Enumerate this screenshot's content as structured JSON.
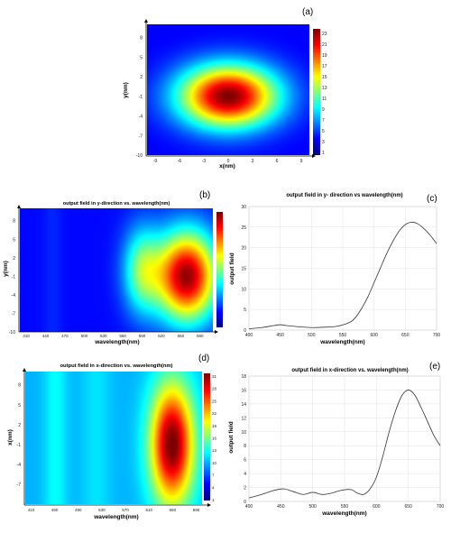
{
  "panels": {
    "a": "(a)",
    "b": "(b)",
    "c": "(c)",
    "d": "(d)",
    "e": "(e)"
  },
  "chart_data": [
    {
      "id": "a",
      "type": "heatmap",
      "title": "",
      "xlabel": "x(nm)",
      "ylabel": "y(nm)",
      "xlim": [
        -10,
        10
      ],
      "ylim": [
        -10,
        10
      ],
      "x_ticks": [
        "-9",
        "-6",
        "-3",
        "0",
        "3",
        "6",
        "9"
      ],
      "x_tick_values": [
        -9,
        -6,
        -3,
        0,
        3,
        6,
        9
      ],
      "y_ticks": [
        "8",
        "5",
        "2",
        "-1",
        "-4",
        "-7",
        "-10"
      ],
      "y_tick_values": [
        8,
        5,
        2,
        -1,
        -4,
        -7,
        -10
      ],
      "colorbar_ticks": [
        "23",
        "21",
        "19",
        "17",
        "15",
        "13",
        "11",
        "9",
        "7",
        "5",
        "3",
        "1"
      ],
      "colorbar_range": [
        1,
        24
      ],
      "peak": {
        "x": 0,
        "y": -1,
        "value": 24
      },
      "colors": {
        "low": "#000090",
        "high": "#900000"
      }
    },
    {
      "id": "b",
      "type": "heatmap",
      "title": "output field in y-direction vs. wavelength(nm)",
      "xlabel": "wavelength(nm)",
      "ylabel": "y(nm)",
      "xlim": [
        400,
        700
      ],
      "ylim": [
        -10,
        10
      ],
      "x_ticks": [
        "410",
        "440",
        "470",
        "500",
        "530",
        "560",
        "590",
        "620",
        "650",
        "680"
      ],
      "x_tick_values": [
        410,
        440,
        470,
        500,
        530,
        560,
        590,
        620,
        650,
        680
      ],
      "y_ticks": [
        "8",
        "5",
        "2",
        "-1",
        "-4",
        "-7",
        "-10"
      ],
      "y_tick_values": [
        8,
        5,
        2,
        -1,
        -4,
        -7,
        -10
      ],
      "colorbar_ticks": [],
      "colorbar_range": [
        0,
        26
      ],
      "peak": {
        "x": 660,
        "y": -1,
        "value": 26
      }
    },
    {
      "id": "c",
      "type": "line",
      "title": "output field in y- direction  vs wavelength(nm)",
      "xlabel": "wavelength(nm)",
      "ylabel": "output field",
      "xlim": [
        400,
        700
      ],
      "ylim": [
        0,
        30
      ],
      "grid": true,
      "x_ticks": [
        "400",
        "450",
        "500",
        "550",
        "600",
        "650",
        "700"
      ],
      "y_ticks": [
        "0",
        "5",
        "10",
        "15",
        "20",
        "25",
        "30"
      ],
      "series": [
        {
          "x": [
            400,
            420,
            440,
            450,
            460,
            480,
            500,
            520,
            540,
            560,
            570,
            580,
            590,
            600,
            610,
            620,
            630,
            640,
            650,
            660,
            670,
            680,
            690,
            700
          ],
          "values": [
            0.3,
            0.6,
            1.1,
            1.3,
            1.1,
            0.8,
            0.6,
            0.7,
            0.9,
            1.8,
            3.0,
            5.2,
            8.0,
            11.5,
            15.0,
            18.5,
            21.5,
            24.0,
            25.6,
            26.2,
            25.8,
            24.6,
            23.0,
            21.0
          ]
        }
      ]
    },
    {
      "id": "d",
      "type": "heatmap",
      "title": "output field in x-direction vs. wavelength(nm)",
      "xlabel": "wavelength(nm)",
      "ylabel": "x(nm)",
      "xlim": [
        400,
        700
      ],
      "ylim": [
        -10,
        10
      ],
      "x_ticks": [
        "410",
        "450",
        "490",
        "530",
        "570",
        "610",
        "650",
        "690"
      ],
      "x_tick_values": [
        410,
        450,
        490,
        530,
        570,
        610,
        650,
        690
      ],
      "y_ticks": [
        "8",
        "5",
        "2",
        "-1",
        "-4",
        "-7"
      ],
      "y_tick_values": [
        8,
        5,
        2,
        -1,
        -4,
        -7
      ],
      "colorbar_ticks": [
        "31",
        "28",
        "25",
        "22",
        "19",
        "16",
        "13",
        "10",
        "7",
        "4",
        "1"
      ],
      "colorbar_range": [
        1,
        32
      ],
      "peak": {
        "x": 650,
        "y": -1,
        "value": 32
      }
    },
    {
      "id": "e",
      "type": "line",
      "title": "output field in x-direction vs. wavelength(nm)",
      "xlabel": "wavelength(nm)",
      "ylabel": "output field",
      "xlim": [
        400,
        700
      ],
      "ylim": [
        0,
        18
      ],
      "grid": true,
      "x_ticks": [
        "400",
        "450",
        "500",
        "550",
        "600",
        "650",
        "700"
      ],
      "y_ticks": [
        "0",
        "2",
        "4",
        "6",
        "8",
        "10",
        "12",
        "14",
        "16",
        "18"
      ],
      "series": [
        {
          "x": [
            400,
            420,
            440,
            455,
            470,
            485,
            500,
            515,
            530,
            545,
            560,
            570,
            580,
            590,
            600,
            610,
            620,
            630,
            640,
            650,
            660,
            670,
            680,
            690,
            700
          ],
          "values": [
            0.5,
            1.0,
            1.6,
            1.8,
            1.4,
            1.0,
            1.3,
            1.0,
            1.2,
            1.6,
            1.7,
            1.2,
            1.0,
            1.8,
            3.5,
            6.5,
            10.0,
            13.0,
            15.2,
            16.0,
            15.3,
            13.5,
            11.5,
            9.5,
            8.0
          ]
        }
      ]
    }
  ]
}
